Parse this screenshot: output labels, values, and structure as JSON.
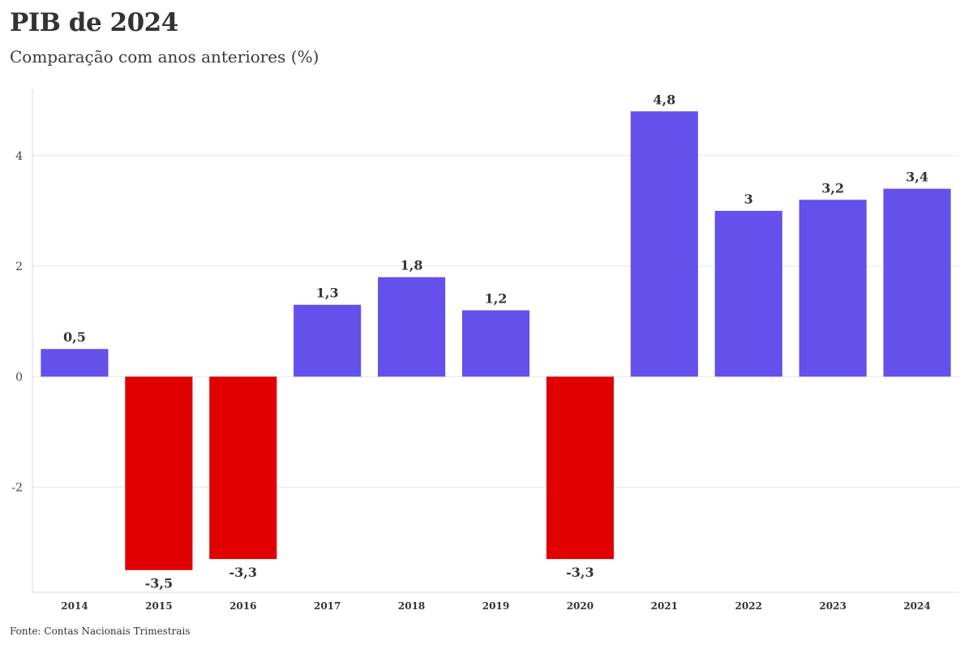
{
  "colors": {
    "positive": "#6450ea",
    "negative": "#e00000",
    "grid": "#e6e6e6",
    "axis": "#dcdcdc"
  },
  "chart_data": {
    "type": "bar",
    "title": "PIB de 2024",
    "subtitle": "Comparação com anos anteriores (%)",
    "source": "Fonte: Contas Nacionais Trimestrais",
    "xlabel": "",
    "ylabel": "",
    "categories": [
      "2014",
      "2015",
      "2016",
      "2017",
      "2018",
      "2019",
      "2020",
      "2021",
      "2022",
      "2023",
      "2024"
    ],
    "values": [
      0.5,
      -3.5,
      -3.3,
      1.3,
      1.8,
      1.2,
      -3.3,
      4.8,
      3.0,
      3.2,
      3.4
    ],
    "data_labels": [
      "0,5",
      "-3,5",
      "-3,3",
      "1,3",
      "1,8",
      "1,2",
      "-3,3",
      "4,8",
      "3",
      "3,2",
      "3,4"
    ],
    "ylim": [
      -3.9,
      5.2
    ],
    "yticks": [
      -2,
      0,
      2,
      4
    ],
    "ytick_labels": [
      "-2",
      "0",
      "2",
      "4"
    ],
    "grid": true,
    "legend": "none"
  }
}
